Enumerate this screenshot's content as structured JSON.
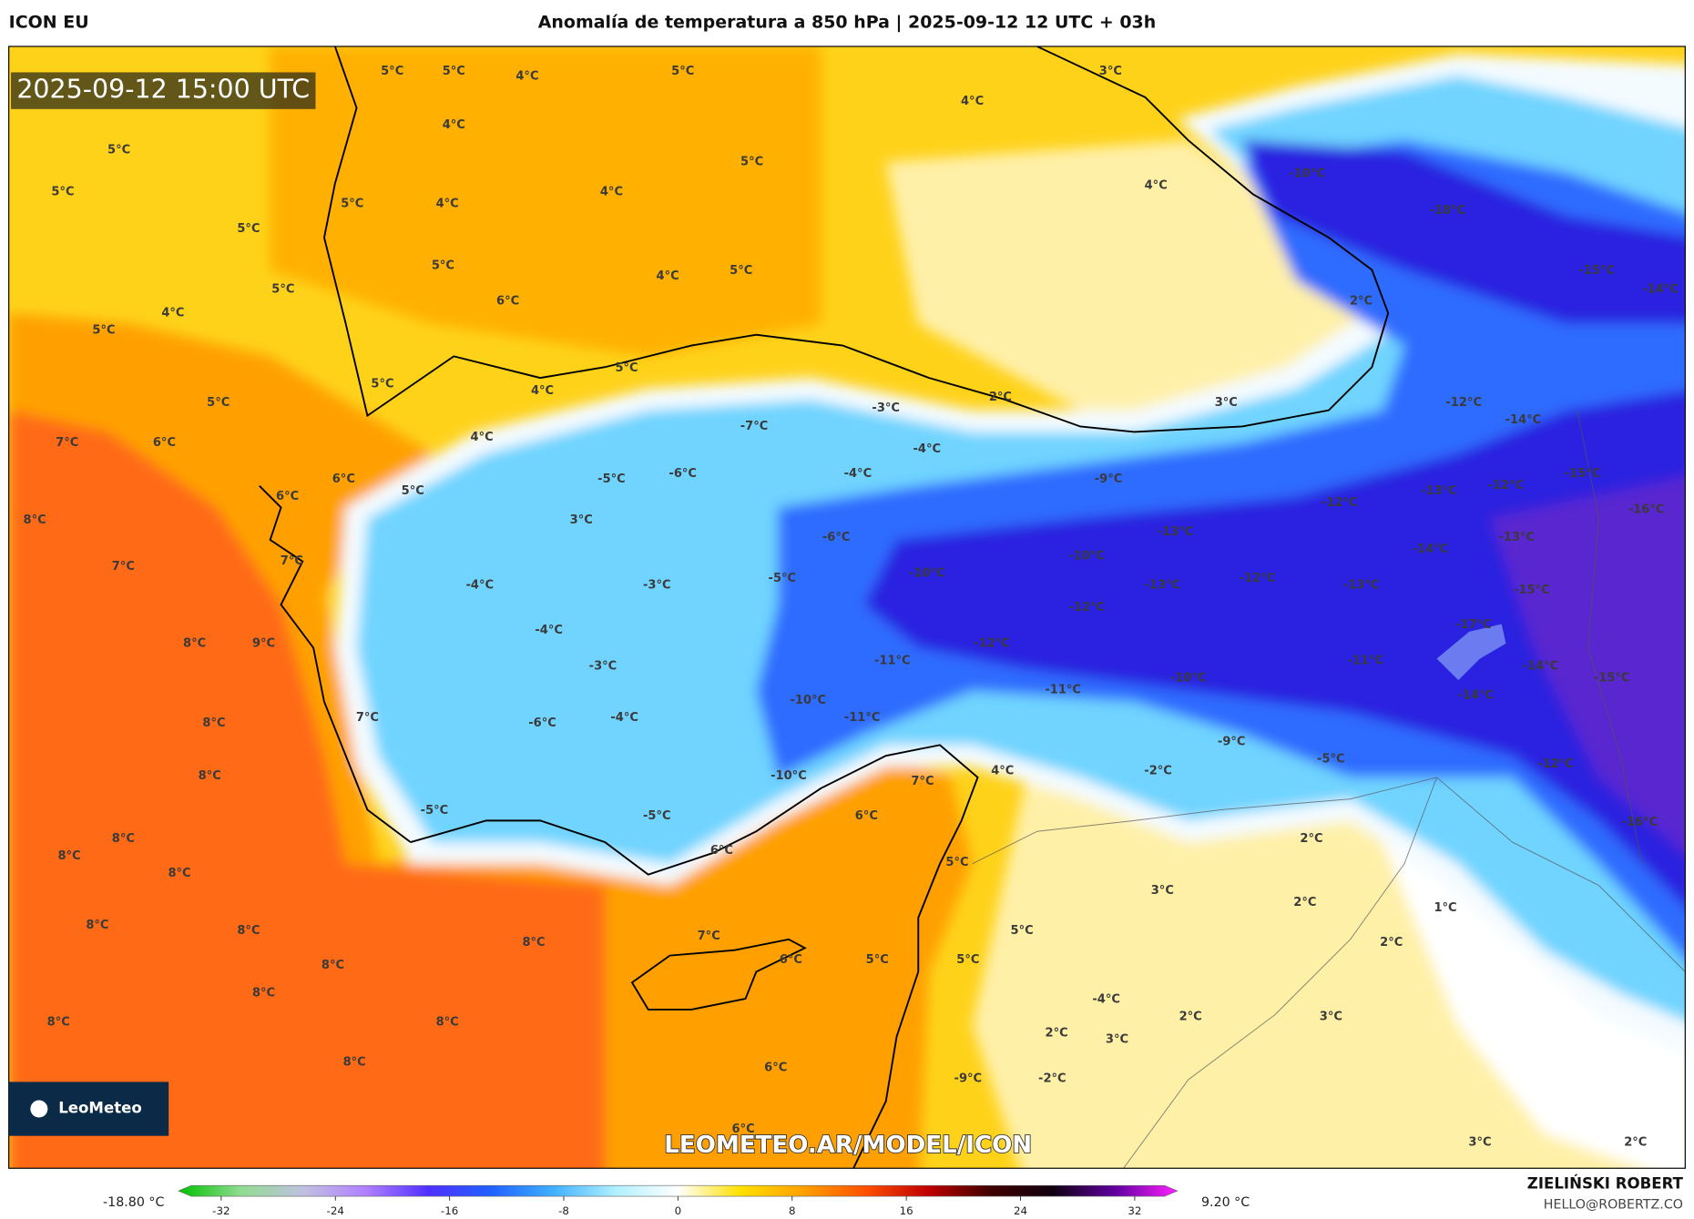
{
  "header": {
    "model": "ICON EU",
    "title": "Anomalía de temperatura a 850 hPa | 2025-09-12 12 UTC + 03h"
  },
  "map": {
    "timestamp": "2025-09-12 15:00 UTC",
    "logo": "LeoMeteo",
    "watermark": "LEOMETEO.AR/MODEL/ICON",
    "labels": [
      "5°C",
      "5°C",
      "4°C",
      "5°C",
      "3°C",
      "4°C",
      "4°C",
      "5°C",
      "5°C",
      "-10°C",
      "5°C",
      "5°C",
      "4°C",
      "4°C",
      "4°C",
      "-18°C",
      "5°C",
      "5°C",
      "4°C",
      "5°C",
      "-15°C",
      "5°C",
      "4°C",
      "6°C",
      "2°C",
      "-14°C",
      "5°C",
      "5°C",
      "5°C",
      "4°C",
      "2°C",
      "-3°C",
      "3°C",
      "-12°C",
      "5°C",
      "-14°C",
      "7°C",
      "6°C",
      "4°C",
      "-7°C",
      "-4°C",
      "6°C",
      "-5°C",
      "-6°C",
      "-4°C",
      "-9°C",
      "-15°C",
      "6°C",
      "5°C",
      "-13°C",
      "-12°C",
      "-12°C",
      "-16°C",
      "8°C",
      "3°C",
      "-13°C",
      "-6°C",
      "-13°C",
      "7°C",
      "7°C",
      "-10°C",
      "-10°C",
      "-14°C",
      "-4°C",
      "-3°C",
      "-5°C",
      "-13°C",
      "-12°C",
      "-13°C",
      "-15°C",
      "-12°C",
      "-4°C",
      "-17°C",
      "8°C",
      "9°C",
      "-12°C",
      "-3°C",
      "-11°C",
      "-11°C",
      "-14°C",
      "-10°C",
      "-11°C",
      "-15°C",
      "-14°C",
      "-10°C",
      "8°C",
      "7°C",
      "-4°C",
      "-6°C",
      "-11°C",
      "-9°C",
      "-5°C",
      "-12°C",
      "-2°C",
      "4°C",
      "8°C",
      "-10°C",
      "7°C",
      "-5°C",
      "-5°C",
      "6°C",
      "-16°C",
      "8°C",
      "2°C",
      "8°C",
      "6°C",
      "5°C",
      "8°C",
      "3°C",
      "2°C",
      "1°C",
      "8°C",
      "5°C",
      "8°C",
      "7°C",
      "8°C",
      "2°C",
      "6°C",
      "5°C",
      "5°C",
      "8°C",
      "8°C",
      "-4°C",
      "3°C",
      "2°C",
      "8°C",
      "8°C",
      "2°C",
      "3°C",
      "8°C",
      "6°C",
      "-9°C",
      "-2°C",
      "6°C",
      "3°C",
      "2°C"
    ]
  },
  "colorbar": {
    "min_label": "-18.80 °C",
    "max_label": "9.20 °C",
    "lim": [
      -35,
      35
    ],
    "ticks": [
      -32,
      -24,
      -16,
      -8,
      0,
      8,
      16,
      24,
      32
    ],
    "colors": [
      "#00c000",
      "#90dc90",
      "#c0c0e0",
      "#b080ff",
      "#5030ff",
      "#2060ff",
      "#40b0ff",
      "#b0f0ff",
      "#ffffff",
      "#ffe000",
      "#ffa000",
      "#ff5000",
      "#c00000",
      "#400000",
      "#100010",
      "#6000a0",
      "#ff20ff"
    ]
  },
  "footer": {
    "author": "ZIELIŃSKI ROBERT",
    "email": "HELLO@ROBERTZ.CO"
  }
}
